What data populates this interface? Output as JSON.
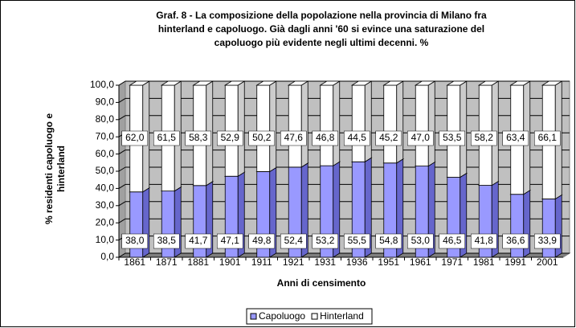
{
  "chart_data": {
    "type": "bar3d_stacked",
    "title": [
      "Graf. 8 - La composizione della popolazione nella provincia di Milano fra",
      "hinterland e capoluogo. Già dagli anni '60 si evince una saturazione del",
      "capoluogo più evidente negli ultimi decenni. %"
    ],
    "y_label": [
      "% residenti capoluogo e",
      "hinterland"
    ],
    "x_label": "Anni di censimento",
    "categories": [
      "1861",
      "1871",
      "1881",
      "1901",
      "1911",
      "1921",
      "1931",
      "1936",
      "1951",
      "1961",
      "1971",
      "1981",
      "1991",
      "2001"
    ],
    "series": [
      {
        "name": "Capoluogo",
        "color": "#9999ff",
        "side": "#6666cc",
        "values": [
          38.0,
          38.5,
          41.7,
          47.1,
          49.8,
          52.4,
          53.2,
          55.5,
          54.8,
          53.0,
          46.5,
          41.8,
          36.6,
          33.9
        ],
        "value_labels": [
          "38,0",
          "38,5",
          "41,7",
          "47,1",
          "49,8",
          "52,4",
          "53,2",
          "55,5",
          "54,8",
          "53,0",
          "46,5",
          "41,8",
          "36,6",
          "33,9"
        ]
      },
      {
        "name": "Hinterland",
        "color": "#ffffff",
        "side": "#cccccc",
        "values": [
          62.0,
          61.5,
          58.3,
          52.9,
          50.2,
          47.6,
          46.8,
          44.5,
          45.2,
          47.0,
          53.5,
          58.2,
          63.4,
          66.1
        ],
        "value_labels": [
          "62,0",
          "61,5",
          "58,3",
          "52,9",
          "50,2",
          "47,6",
          "46,8",
          "44,5",
          "45,2",
          "47,0",
          "53,5",
          "58,2",
          "63,4",
          "66,1"
        ]
      }
    ],
    "ylim": [
      0,
      100
    ],
    "yticks": [
      {
        "value": 0,
        "label": "0,0"
      },
      {
        "value": 10,
        "label": "10,0"
      },
      {
        "value": 20,
        "label": "20,0"
      },
      {
        "value": 30,
        "label": "30,0"
      },
      {
        "value": 40,
        "label": "40,0"
      },
      {
        "value": 50,
        "label": "50,0"
      },
      {
        "value": 60,
        "label": "60,0"
      },
      {
        "value": 70,
        "label": "70,0"
      },
      {
        "value": 80,
        "label": "80,0"
      },
      {
        "value": 90,
        "label": "90,0"
      },
      {
        "value": 100,
        "label": "100,0"
      }
    ],
    "legend": "bottom"
  }
}
